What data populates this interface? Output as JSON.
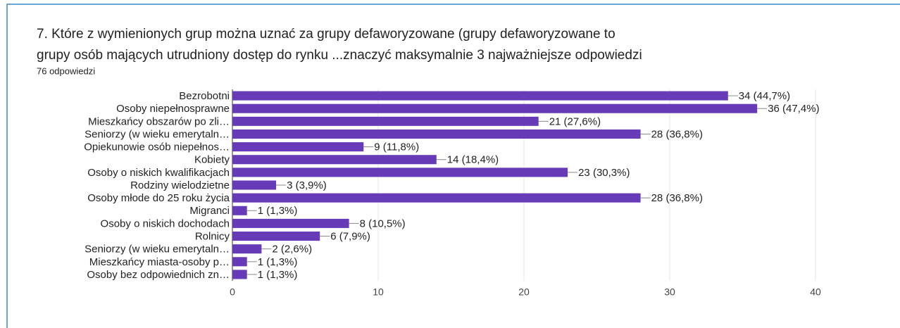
{
  "chart_data": {
    "type": "barh",
    "title": [
      "7. Które z wymienionych grup można uznać za grupy defaworyzowane (grupy defaworyzowane to",
      "grupy osób mających utrudniony dostęp do rynku ...znaczyć maksymalnie 3 najważniejsze odpowiedzi"
    ],
    "subtitle": "76 odpowiedzi",
    "categories": [
      "Bezrobotni",
      "Osoby niepełnosprawne",
      "Mieszkańcy obszarów po zli…",
      "Seniorzy (w wieku emerytaln…",
      "Opiekunowie osób niepełnos…",
      "Kobiety",
      "Osoby o niskich kwalifikacjach",
      "Rodziny wielodzietne",
      "Osoby młode do 25 roku życia",
      "Migranci",
      "Osoby o niskich dochodach",
      "Rolnicy",
      "Seniorzy (w wieku emerytaln…",
      "Mieszkańcy miasta-osoby p…",
      "Osoby bez odpowiednich zn…"
    ],
    "values": [
      34,
      36,
      21,
      28,
      9,
      14,
      23,
      3,
      28,
      1,
      8,
      6,
      2,
      1,
      1
    ],
    "value_labels": [
      "34 (44,7%)",
      "36 (47,4%)",
      "21 (27,6%)",
      "28 (36,8%)",
      "9 (11,8%)",
      "14 (18,4%)",
      "23 (30,3%)",
      "3 (3,9%)",
      "28 (36,8%)",
      "1 (1,3%)",
      "8 (10,5%)",
      "6 (7,9%)",
      "2 (2,6%)",
      "1 (1,3%)",
      "1 (1,3%)"
    ],
    "color": "#673ab7",
    "xlim": [
      0,
      40
    ],
    "xticks": [
      0,
      10,
      20,
      30,
      40
    ],
    "grid": true
  }
}
